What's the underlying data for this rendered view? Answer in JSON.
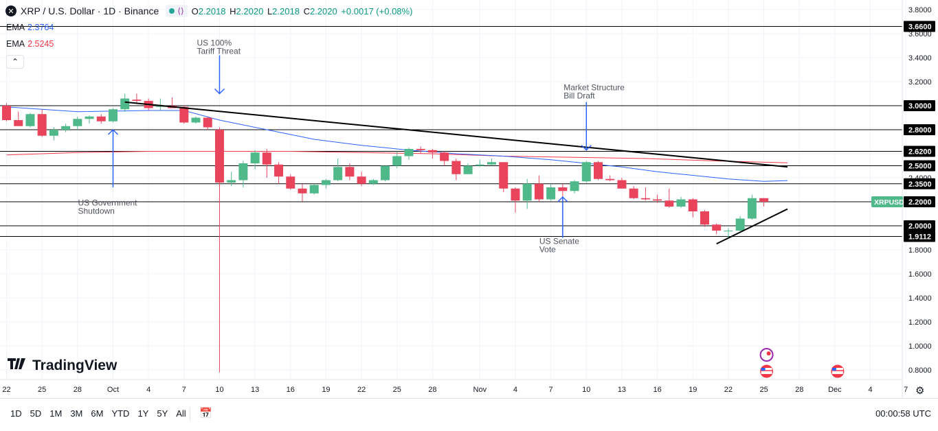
{
  "legend": {
    "symbol_icon": "x-logo-icon",
    "title": "XRP / U.S. Dollar · 1D · Binance",
    "open_label": "O",
    "open": "2.2018",
    "high_label": "H",
    "high": "2.2020",
    "low_label": "L",
    "low": "2.2018",
    "close_label": "C",
    "close": "2.2020",
    "change": "+0.0017 (+0.08%)"
  },
  "ema_fast": {
    "label": "EMA",
    "value": "2.3764",
    "color": "#2962ff"
  },
  "ema_slow": {
    "label": "EMA",
    "value": "2.5245",
    "color": "#f23645"
  },
  "collapse_symbol": "⌃",
  "logo_text": "TradingView",
  "timeframes": [
    "1D",
    "5D",
    "1M",
    "3M",
    "6M",
    "YTD",
    "1Y",
    "5Y",
    "All"
  ],
  "clock": "00:00:58 UTC",
  "colors": {
    "up": "#4fb98a",
    "down": "#e8455c",
    "accent": "#2962ff"
  },
  "chart_data": {
    "type": "candlestick",
    "price_axis_ticks": [
      "3.8000",
      "3.6000",
      "3.4000",
      "3.2000",
      "3.0000",
      "2.8000",
      "2.6000",
      "2.4000",
      "2.2000",
      "2.0000",
      "1.8000",
      "1.6000",
      "1.4000",
      "1.2000",
      "1.0000",
      "0.8000"
    ],
    "ylim": [
      0.72,
      3.88
    ],
    "date_axis_ticks": [
      {
        "label": "22",
        "i": 0
      },
      {
        "label": "25",
        "i": 3
      },
      {
        "label": "28",
        "i": 6
      },
      {
        "label": "Oct",
        "i": 9
      },
      {
        "label": "4",
        "i": 12
      },
      {
        "label": "7",
        "i": 15
      },
      {
        "label": "10",
        "i": 18
      },
      {
        "label": "13",
        "i": 21
      },
      {
        "label": "16",
        "i": 24
      },
      {
        "label": "19",
        "i": 27
      },
      {
        "label": "22",
        "i": 30
      },
      {
        "label": "25",
        "i": 33
      },
      {
        "label": "28",
        "i": 36
      },
      {
        "label": "Nov",
        "i": 40
      },
      {
        "label": "4",
        "i": 43
      },
      {
        "label": "7",
        "i": 46
      },
      {
        "label": "10",
        "i": 49
      },
      {
        "label": "13",
        "i": 52
      },
      {
        "label": "16",
        "i": 55
      },
      {
        "label": "19",
        "i": 58
      },
      {
        "label": "22",
        "i": 61
      },
      {
        "label": "25",
        "i": 64
      },
      {
        "label": "28",
        "i": 67
      },
      {
        "label": "Dec",
        "i": 70
      },
      {
        "label": "4",
        "i": 73
      },
      {
        "label": "7",
        "i": 76
      }
    ],
    "candles": [
      [
        3.0,
        3.02,
        2.87,
        2.88
      ],
      [
        2.88,
        2.95,
        2.83,
        2.83
      ],
      [
        2.83,
        2.94,
        2.82,
        2.93
      ],
      [
        2.93,
        2.97,
        2.74,
        2.75
      ],
      [
        2.75,
        2.82,
        2.71,
        2.8
      ],
      [
        2.8,
        2.85,
        2.78,
        2.83
      ],
      [
        2.83,
        2.91,
        2.8,
        2.89
      ],
      [
        2.89,
        2.92,
        2.85,
        2.91
      ],
      [
        2.91,
        2.93,
        2.85,
        2.87
      ],
      [
        2.87,
        2.98,
        2.86,
        2.97
      ],
      [
        2.97,
        3.1,
        2.95,
        3.06
      ],
      [
        3.05,
        3.1,
        3.02,
        3.04
      ],
      [
        3.04,
        3.06,
        2.96,
        2.98
      ],
      [
        2.99,
        3.06,
        2.96,
        3.0
      ],
      [
        3.0,
        3.07,
        2.99,
        2.98
      ],
      [
        2.99,
        3.0,
        2.85,
        2.86
      ],
      [
        2.86,
        2.91,
        2.85,
        2.9
      ],
      [
        2.9,
        2.91,
        2.8,
        2.82
      ],
      [
        2.8,
        2.82,
        0.78,
        2.36
      ],
      [
        2.36,
        2.45,
        2.33,
        2.38
      ],
      [
        2.38,
        2.54,
        2.32,
        2.52
      ],
      [
        2.52,
        2.63,
        2.47,
        2.61
      ],
      [
        2.61,
        2.64,
        2.4,
        2.51
      ],
      [
        2.51,
        2.53,
        2.35,
        2.41
      ],
      [
        2.41,
        2.43,
        2.3,
        2.31
      ],
      [
        2.31,
        2.35,
        2.2,
        2.27
      ],
      [
        2.27,
        2.35,
        2.26,
        2.34
      ],
      [
        2.34,
        2.39,
        2.31,
        2.38
      ],
      [
        2.38,
        2.56,
        2.37,
        2.49
      ],
      [
        2.49,
        2.52,
        2.38,
        2.41
      ],
      [
        2.41,
        2.45,
        2.33,
        2.35
      ],
      [
        2.35,
        2.39,
        2.34,
        2.38
      ],
      [
        2.38,
        2.5,
        2.37,
        2.5
      ],
      [
        2.5,
        2.62,
        2.48,
        2.58
      ],
      [
        2.58,
        2.65,
        2.55,
        2.64
      ],
      [
        2.64,
        2.66,
        2.6,
        2.63
      ],
      [
        2.63,
        2.64,
        2.56,
        2.61
      ],
      [
        2.61,
        2.62,
        2.5,
        2.54
      ],
      [
        2.54,
        2.56,
        2.38,
        2.43
      ],
      [
        2.43,
        2.52,
        2.43,
        2.5
      ],
      [
        2.5,
        2.55,
        2.49,
        2.51
      ],
      [
        2.51,
        2.56,
        2.5,
        2.53
      ],
      [
        2.53,
        2.53,
        2.28,
        2.31
      ],
      [
        2.31,
        2.32,
        2.11,
        2.21
      ],
      [
        2.21,
        2.39,
        2.14,
        2.35
      ],
      [
        2.35,
        2.42,
        2.2,
        2.22
      ],
      [
        2.22,
        2.35,
        2.21,
        2.32
      ],
      [
        2.32,
        2.35,
        2.24,
        2.29
      ],
      [
        2.29,
        2.38,
        2.27,
        2.37
      ],
      [
        2.37,
        2.54,
        2.36,
        2.53
      ],
      [
        2.53,
        2.54,
        2.38,
        2.39
      ],
      [
        2.39,
        2.42,
        2.37,
        2.38
      ],
      [
        2.38,
        2.4,
        2.31,
        2.31
      ],
      [
        2.31,
        2.33,
        2.22,
        2.23
      ],
      [
        2.23,
        2.32,
        2.21,
        2.22
      ],
      [
        2.22,
        2.26,
        2.19,
        2.21
      ],
      [
        2.21,
        2.31,
        2.15,
        2.16
      ],
      [
        2.16,
        2.24,
        2.15,
        2.22
      ],
      [
        2.22,
        2.23,
        2.07,
        2.12
      ],
      [
        2.12,
        2.13,
        1.99,
        2.01
      ],
      [
        2.01,
        2.02,
        1.93,
        1.96
      ],
      [
        1.96,
        1.98,
        1.9,
        1.96
      ],
      [
        1.96,
        2.08,
        1.95,
        2.06
      ],
      [
        2.06,
        2.26,
        2.05,
        2.23
      ],
      [
        2.23,
        2.23,
        2.16,
        2.2
      ]
    ],
    "ema_fast_series": [
      [
        0,
        2.99
      ],
      [
        6,
        2.95
      ],
      [
        12,
        2.96
      ],
      [
        15,
        2.96
      ],
      [
        18,
        2.88
      ],
      [
        22,
        2.8
      ],
      [
        26,
        2.72
      ],
      [
        30,
        2.67
      ],
      [
        34,
        2.63
      ],
      [
        38,
        2.6
      ],
      [
        42,
        2.58
      ],
      [
        46,
        2.55
      ],
      [
        49,
        2.52
      ],
      [
        52,
        2.49
      ],
      [
        55,
        2.45
      ],
      [
        58,
        2.42
      ],
      [
        61,
        2.39
      ],
      [
        64,
        2.37
      ],
      [
        66,
        2.3764
      ]
    ],
    "ema_slow_series": [
      [
        0,
        2.59
      ],
      [
        6,
        2.61
      ],
      [
        12,
        2.62
      ],
      [
        18,
        2.62
      ],
      [
        24,
        2.62
      ],
      [
        30,
        2.61
      ],
      [
        36,
        2.6
      ],
      [
        42,
        2.58
      ],
      [
        48,
        2.57
      ],
      [
        54,
        2.56
      ],
      [
        60,
        2.54
      ],
      [
        66,
        2.5245
      ]
    ],
    "horizontal_levels": [
      {
        "price": 3.66,
        "label": "3.6600"
      },
      {
        "price": 3.0,
        "label": "3.0000"
      },
      {
        "price": 2.8,
        "label": "2.8000"
      },
      {
        "price": 2.62,
        "label": "2.6200"
      },
      {
        "price": 2.5,
        "label": "2.5000"
      },
      {
        "price": 2.35,
        "label": "2.3500"
      },
      {
        "price": 2.2,
        "label": "2.2000"
      },
      {
        "price": 2.0,
        "label": "2.0000"
      },
      {
        "price": 1.9112,
        "label": "1.9112"
      }
    ],
    "trend_lines": [
      {
        "from": [
          10,
          3.03
        ],
        "to": [
          66,
          2.49
        ]
      },
      {
        "from": [
          60,
          1.85
        ],
        "to": [
          66,
          2.14
        ]
      }
    ],
    "price_badge": {
      "label": "XRPUSD",
      "price": 2.2,
      "color": "#4fb98a"
    },
    "annotations": [
      {
        "lines": [
          "US 100%",
          "Tariff Threat"
        ],
        "i": 18,
        "text_price": 3.5,
        "arrow": "down",
        "arrow_from": 3.42,
        "arrow_to": 3.1
      },
      {
        "lines": [
          "Market Structure",
          "Bill Draft"
        ],
        "i": 49,
        "text_price": 3.13,
        "arrow": "down",
        "arrow_from": 3.03,
        "arrow_to": 2.63
      },
      {
        "lines": [
          "US Government",
          "Shutdown"
        ],
        "i": 9,
        "text_price": 2.17,
        "arrow": "up",
        "arrow_from": 2.32,
        "arrow_to": 2.8
      },
      {
        "lines": [
          "US Senate",
          "Vote"
        ],
        "i": 47,
        "text_price": 1.85,
        "arrow": "up",
        "arrow_from": 1.9,
        "arrow_to": 2.24
      }
    ],
    "event_icons": [
      {
        "name": "us-flag-event-icon",
        "i": 64
      },
      {
        "name": "us-flag-event-icon",
        "i": 70
      },
      {
        "name": "sparkle-event-icon",
        "i": 64
      }
    ]
  }
}
